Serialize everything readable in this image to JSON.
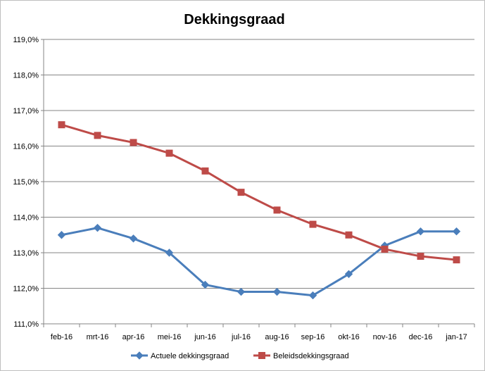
{
  "chart_data": {
    "type": "line",
    "title": "Dekkingsgraad",
    "xlabel": "",
    "ylabel": "",
    "categories": [
      "feb-16",
      "mrt-16",
      "apr-16",
      "mei-16",
      "jun-16",
      "jul-16",
      "aug-16",
      "sep-16",
      "okt-16",
      "nov-16",
      "dec-16",
      "jan-17"
    ],
    "ylim": [
      111.0,
      119.0
    ],
    "yticks": [
      "111,0%",
      "112,0%",
      "113,0%",
      "114,0%",
      "115,0%",
      "116,0%",
      "117,0%",
      "118,0%",
      "119,0%"
    ],
    "grid": true,
    "legend_position": "bottom",
    "series": [
      {
        "name": "Actuele dekkingsgraad",
        "color": "#4a7ebb",
        "marker": "diamond",
        "values": [
          113.5,
          113.7,
          113.4,
          113.0,
          112.1,
          111.9,
          111.9,
          111.8,
          112.4,
          113.2,
          113.6,
          113.6
        ]
      },
      {
        "name": "Beleidsdekkingsgraad",
        "color": "#be4b48",
        "marker": "square",
        "values": [
          116.6,
          116.3,
          116.1,
          115.8,
          115.3,
          114.7,
          114.2,
          113.8,
          113.5,
          113.1,
          112.9,
          112.8
        ]
      }
    ]
  }
}
